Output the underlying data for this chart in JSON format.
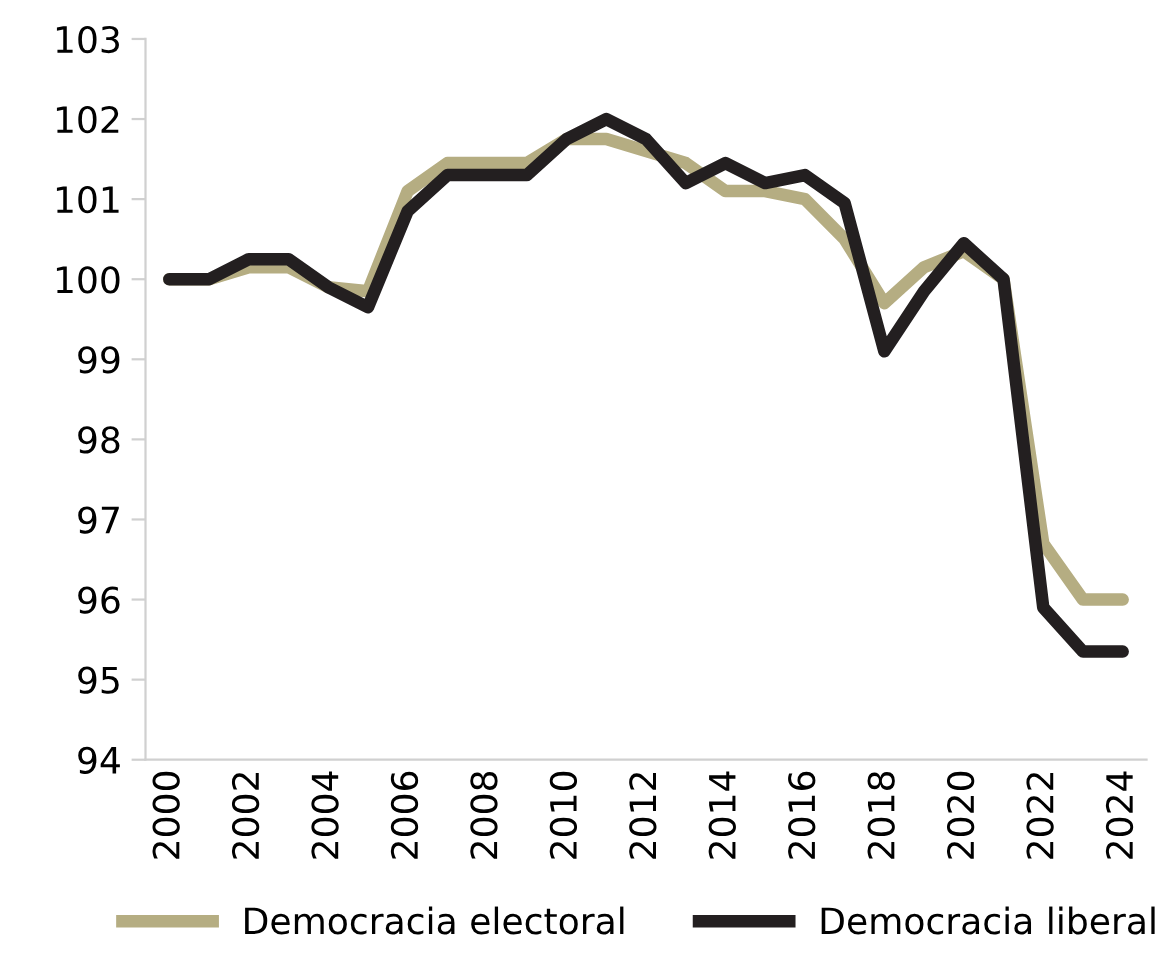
{
  "chart_data": {
    "type": "line",
    "categories": [
      "2000",
      null,
      "2002",
      null,
      "2004",
      null,
      "2006",
      null,
      "2008",
      null,
      "2010",
      null,
      "2012",
      null,
      "2014",
      null,
      "2016",
      null,
      "2018",
      null,
      "2020",
      null,
      "2022",
      null,
      "2024"
    ],
    "series": [
      {
        "name": "Democracia electoral",
        "color": "#b5ad82",
        "values": [
          100,
          100,
          100.15,
          100.15,
          99.9,
          99.85,
          101.1,
          101.45,
          101.45,
          101.45,
          101.75,
          101.75,
          101.6,
          101.45,
          101.1,
          101.1,
          101.0,
          100.5,
          99.7,
          100.15,
          100.35,
          100.0,
          96.7,
          96.0,
          96.0
        ]
      },
      {
        "name": "Democracia liberal",
        "color": "#231f20",
        "values": [
          100,
          100,
          100.25,
          100.25,
          99.9,
          99.65,
          100.85,
          101.3,
          101.3,
          101.3,
          101.75,
          102.0,
          101.75,
          101.2,
          101.45,
          101.2,
          101.3,
          100.95,
          99.1,
          99.85,
          100.45,
          100.0,
          95.9,
          95.35,
          95.35
        ]
      }
    ],
    "ylim": [
      94,
      103
    ],
    "yticks": [
      94,
      95,
      96,
      97,
      98,
      99,
      100,
      101,
      102,
      103
    ],
    "grid": false,
    "legend": "bottom",
    "marker": "none",
    "line_style": "solid"
  }
}
